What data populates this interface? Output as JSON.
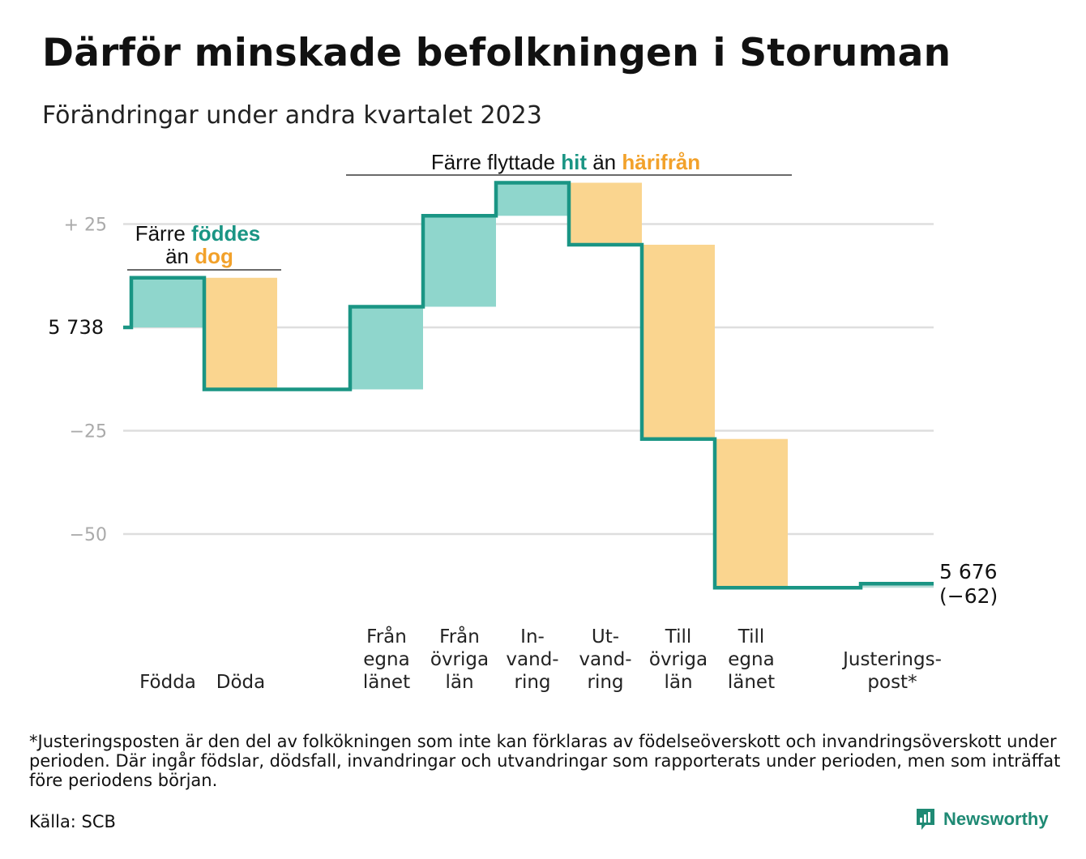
{
  "title": "Därför minskade befolkningen i Storuman",
  "subtitle": "Förändringar under andra kvartalet 2023",
  "colors": {
    "teal": "#1a9584",
    "teal_fill": "#8fd6cc",
    "orange": "#f2a12a",
    "orange_fill": "#fad58f",
    "grid": "#dedede",
    "tick_text": "#aaaaaa"
  },
  "chart_data": {
    "type": "waterfall",
    "start_value": 5738,
    "start_label": "5  738",
    "y_ticks": [
      {
        "value": 25,
        "label": "+  25"
      },
      {
        "value": -25,
        "label": "−25"
      },
      {
        "value": -50,
        "label": "−50"
      }
    ],
    "steps": [
      {
        "label_lines": [
          "Födda"
        ],
        "change": 12,
        "kind": "in"
      },
      {
        "label_lines": [
          "Döda"
        ],
        "change": -27,
        "kind": "out"
      },
      {
        "label_lines": [],
        "change": 0,
        "kind": "gap"
      },
      {
        "label_lines": [
          "Från",
          "egna",
          "länet"
        ],
        "change": 20,
        "kind": "in"
      },
      {
        "label_lines": [
          "Från",
          "övriga",
          "län"
        ],
        "change": 22,
        "kind": "in"
      },
      {
        "label_lines": [
          "In-",
          "vand-",
          "ring"
        ],
        "change": 8,
        "kind": "in"
      },
      {
        "label_lines": [
          "Ut-",
          "vand-",
          "ring"
        ],
        "change": -15,
        "kind": "out"
      },
      {
        "label_lines": [
          "Till",
          "övriga",
          "län"
        ],
        "change": -47,
        "kind": "out"
      },
      {
        "label_lines": [
          "Till",
          "egna",
          "länet"
        ],
        "change": -36,
        "kind": "out"
      },
      {
        "label_lines": [],
        "change": 0,
        "kind": "gap"
      },
      {
        "label_lines": [
          "Justerings-",
          "post*"
        ],
        "change": 1,
        "kind": "adjust"
      }
    ],
    "end_value_label": "5 676",
    "end_change_label": "(−62)",
    "annotations": {
      "births": {
        "pre": "Färre",
        "teal_word": "föddes",
        "mid": "än",
        "orange_word": "dog"
      },
      "migration": {
        "pre": "Färre flyttade",
        "teal_word": "hit",
        "mid": "än",
        "orange_word": "härifrån"
      }
    }
  },
  "footnote": "*Justeringsposten är den del av folkökningen som inte kan förklaras av födelseöverskott och invandringsöverskott under perioden. Där ingår födslar, dödsfall, invandringar och utvandringar som rapporterats under perioden, men som inträffat före periodens början.",
  "source": "Källa: SCB",
  "brand": "Newsworthy",
  "brand_icon": "newsworthy-logo-icon"
}
